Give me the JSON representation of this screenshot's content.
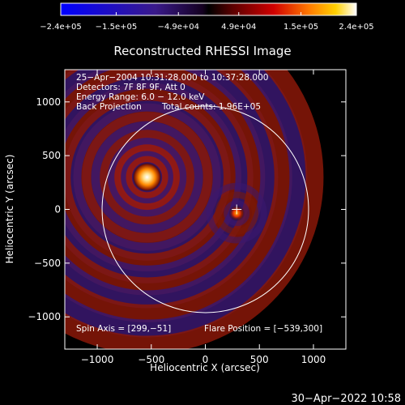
{
  "chart_data": {
    "type": "heatmap",
    "title": "Reconstructed RHESSI Image",
    "xlabel": "Heliocentric X (arcsec)",
    "ylabel": "Heliocentric Y (arcsec)",
    "xlim": [
      -1300,
      1300
    ],
    "ylim": [
      -1300,
      1300
    ],
    "x_ticks": [
      -1000,
      -500,
      0,
      500,
      1000
    ],
    "y_ticks": [
      -1000,
      -500,
      0,
      500,
      1000
    ],
    "x_tick_labels": [
      "−1000",
      "−500",
      "0",
      "500",
      "1000"
    ],
    "y_tick_labels": [
      "−1000",
      "−500",
      "0",
      "500",
      "1000"
    ],
    "colorbar": {
      "min": -240000,
      "max": 240000,
      "tick_values": [
        -240000,
        -150000,
        -49000,
        49000,
        150000,
        240000
      ],
      "tick_labels": [
        "−2.4e+05",
        "−1.5e+05",
        "−4.9e+04",
        "4.9e+04",
        "1.5e+05",
        "2.4e+05"
      ]
    },
    "sources": [
      {
        "x": -539,
        "y": 300,
        "peak": 240000
      },
      {
        "x": 290,
        "y": -35,
        "peak": 120000
      }
    ],
    "solar_limb": {
      "center": [
        0,
        0
      ],
      "radius": 955
    },
    "flare_marker": {
      "x": 290,
      "y": 0
    },
    "annotations": {
      "time_range": "25−Apr−2004 10:31:28.000 to 10:37:28.000",
      "detectors": "Detectors: 7F 8F 9F, Att 0",
      "energy_range": "Energy Range: 6.0 − 12.0 keV",
      "method": "Back Projection",
      "total_counts": "Total counts: 1.96E+05",
      "spin_axis": "Spin Axis = [299,−51]",
      "flare_position": "Flare Position = [−539,300]"
    },
    "colors": {
      "limb": "#ffffff"
    }
  },
  "footer": {
    "date": "30−Apr−2022 10:58"
  }
}
